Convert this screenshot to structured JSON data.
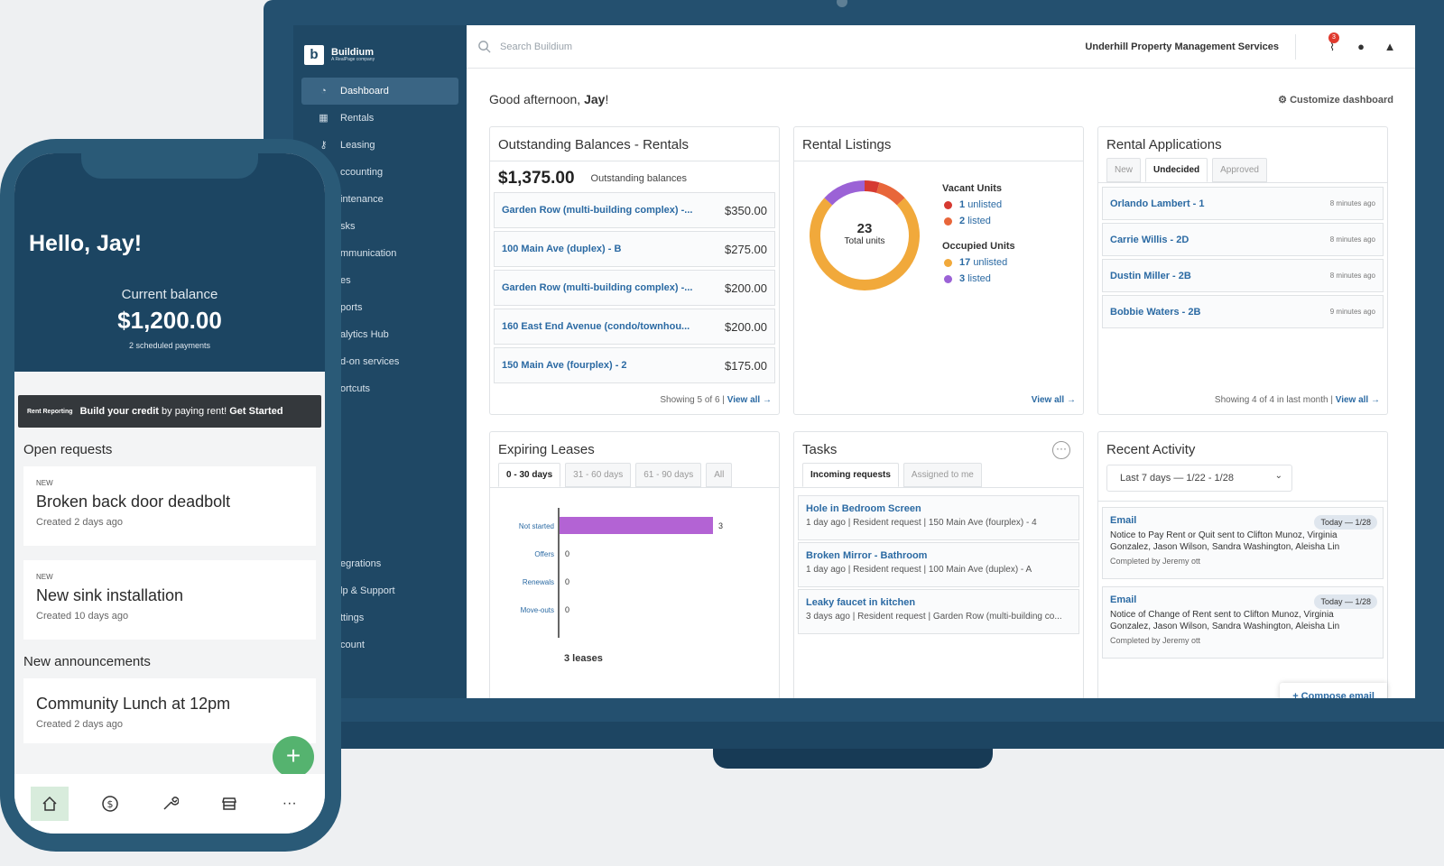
{
  "app": {
    "logo_name": "Buildium",
    "logo_sub": "A RealPage company"
  },
  "topbar": {
    "search_placeholder": "Search Buildium",
    "org": "Underhill Property Management Services",
    "alert_count": "3"
  },
  "sidebar": {
    "items": [
      {
        "label": "Dashboard",
        "icon": "dashboard-icon"
      },
      {
        "label": "Rentals",
        "icon": "building-icon"
      },
      {
        "label": "Leasing",
        "icon": "key-icon"
      },
      {
        "label": "ccounting",
        "icon": "dollar-icon"
      },
      {
        "label": "intenance",
        "icon": "wrench-icon"
      },
      {
        "label": "sks",
        "icon": "check-icon"
      },
      {
        "label": "mmunication",
        "icon": "chat-icon"
      },
      {
        "label": "es",
        "icon": "file-icon"
      },
      {
        "label": "ports",
        "icon": "chart-icon"
      },
      {
        "label": "alytics Hub",
        "icon": "analytics-icon"
      },
      {
        "label": "d-on services",
        "icon": "plus-icon"
      },
      {
        "label": "ortcuts",
        "icon": "star-icon"
      }
    ],
    "bottom_items": [
      "egrations",
      "lp & Support",
      "ttings",
      "count"
    ]
  },
  "greeting": {
    "prefix": "Good afternoon, ",
    "name": "Jay",
    "suffix": "!",
    "customize": "Customize dashboard"
  },
  "balances": {
    "title": "Outstanding Balances - Rentals",
    "total": "$1,375.00",
    "total_label": "Outstanding balances",
    "rows": [
      {
        "name": "Garden Row (multi-building complex) -...",
        "amount": "$350.00"
      },
      {
        "name": "100 Main Ave (duplex) - B",
        "amount": "$275.00"
      },
      {
        "name": "Garden Row (multi-building complex) -...",
        "amount": "$200.00"
      },
      {
        "name": "160 East End Avenue (condo/townhou...",
        "amount": "$200.00"
      },
      {
        "name": "150 Main Ave (fourplex) - 2",
        "amount": "$175.00"
      }
    ],
    "footer": "Showing 5 of 6  |",
    "view_all": "View all →"
  },
  "listings": {
    "title": "Rental Listings",
    "total": "23",
    "total_label": "Total units",
    "vacant_label": "Vacant Units",
    "occupied_label": "Occupied Units",
    "items": [
      {
        "count": "1",
        "text": "unlisted",
        "color": "#d63a31",
        "value": 1
      },
      {
        "count": "2",
        "text": "listed",
        "color": "#e8663a",
        "value": 2
      },
      {
        "count": "17",
        "text": "unlisted",
        "color": "#f1a93b",
        "value": 17
      },
      {
        "count": "3",
        "text": "listed",
        "color": "#9b62d6",
        "value": 3
      }
    ],
    "view_all": "View all →"
  },
  "applications": {
    "title": "Rental Applications",
    "tabs": [
      "New",
      "Undecided",
      "Approved"
    ],
    "rows": [
      {
        "name": "Orlando Lambert - 1",
        "time": "8 minutes ago"
      },
      {
        "name": "Carrie Willis - 2D",
        "time": "8 minutes ago"
      },
      {
        "name": "Dustin Miller - 2B",
        "time": "8 minutes ago"
      },
      {
        "name": "Bobbie Waters - 2B",
        "time": "9 minutes ago"
      }
    ],
    "footer": "Showing 4 of 4 in last month  |",
    "view_all": "View all →"
  },
  "leases": {
    "title": "Expiring Leases",
    "tabs": [
      "0 - 30 days",
      "31 - 60 days",
      "61 - 90 days",
      "All"
    ],
    "total_label": "3 leases"
  },
  "chart_data": {
    "type": "bar",
    "orientation": "horizontal",
    "categories": [
      "Not started",
      "Offers",
      "Renewals",
      "Move-outs"
    ],
    "values": [
      3,
      0,
      0,
      0
    ],
    "xlim": [
      0,
      3
    ],
    "color": "#b363d4"
  },
  "tasks": {
    "title": "Tasks",
    "tabs": [
      "Incoming requests",
      "Assigned to me"
    ],
    "rows": [
      {
        "title": "Hole in Bedroom Screen",
        "detail": "1 day ago | Resident request | 150 Main Ave (fourplex) - 4"
      },
      {
        "title": "Broken Mirror - Bathroom",
        "detail": "1 day ago | Resident request | 100 Main Ave (duplex) - A"
      },
      {
        "title": "Leaky faucet in kitchen",
        "detail": "3 days ago | Resident request | Garden Row (multi-building co..."
      }
    ]
  },
  "activity": {
    "title": "Recent Activity",
    "filter": "Last 7 days — 1/22 - 1/28",
    "rows": [
      {
        "type": "Email",
        "date": "Today — 1/28",
        "text": "Notice to Pay Rent or Quit sent to Clifton Munoz, Virginia Gonzalez, Jason Wilson, Sandra Washington, Aleisha Lin",
        "by": "Completed by Jeremy ott"
      },
      {
        "type": "Email",
        "date": "Today — 1/28",
        "text": "Notice of Change of Rent sent to Clifton Munoz, Virginia Gonzalez, Jason Wilson, Sandra Washington, Aleisha Lin",
        "by": "Completed by Jeremy ott"
      }
    ],
    "compose": "+ Compose email"
  },
  "phone": {
    "hello": "Hello, Jay!",
    "balance_label": "Current balance",
    "balance": "$1,200.00",
    "scheduled": "2 scheduled payments",
    "rent_label": "Rent Reporting",
    "rent_text_1": "Build your credit",
    "rent_text_2": " by paying rent! ",
    "rent_cta": "Get Started",
    "open_requests": "Open requests",
    "requests": [
      {
        "tag": "NEW",
        "title": "Broken back door deadbolt",
        "created": "Created 2 days ago"
      },
      {
        "tag": "NEW",
        "title": "New sink installation",
        "created": "Created 10 days ago"
      }
    ],
    "announcements_label": "New announcements",
    "announcement": {
      "title": "Community Lunch at 12pm",
      "created": "Created 2 days ago"
    },
    "fab": "+",
    "nav": [
      "home-icon",
      "dollar-icon",
      "wrench-icon",
      "store-icon",
      "more-icon"
    ]
  }
}
